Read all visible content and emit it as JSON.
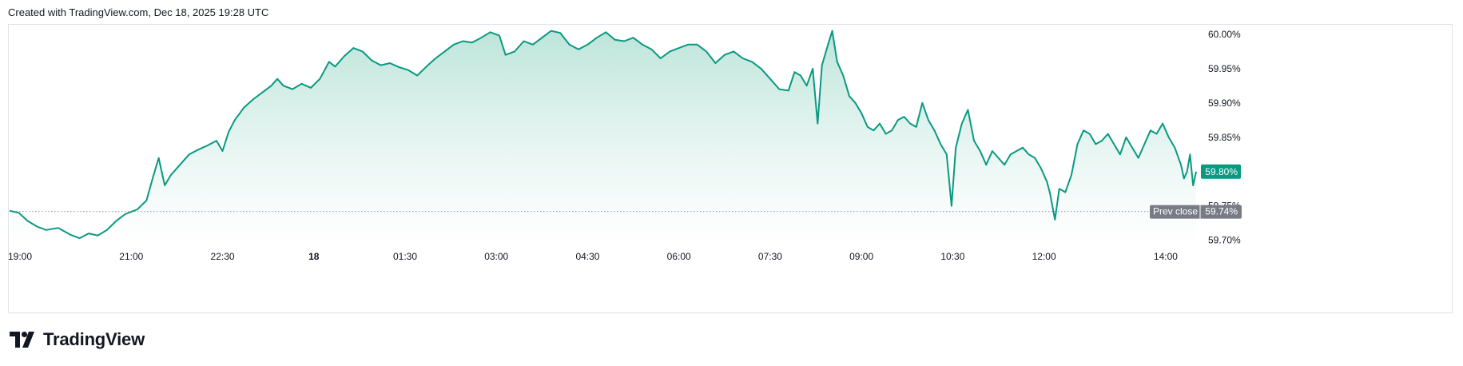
{
  "header": {
    "caption": "Created with TradingView.com, Dec 18, 2025 19:28 UTC"
  },
  "footer": {
    "brand": "TradingView",
    "logo_icon": "tradingview-logo-icon"
  },
  "colors": {
    "line": "#089981",
    "fill_top": "#b9e3d8",
    "fill_bottom": "#ffffff",
    "badge_bg": "#089981",
    "prev_close_bg": "#787b86",
    "prev_close_line": "#9598a1",
    "border": "#e0e3eb"
  },
  "chart_data": {
    "type": "area",
    "title": "",
    "xlabel": "",
    "ylabel": "",
    "x_ticks": [
      {
        "label": "19:00",
        "hours": 0,
        "bold": false
      },
      {
        "label": "21:00",
        "hours": 2,
        "bold": false
      },
      {
        "label": "22:30",
        "hours": 3.5,
        "bold": false
      },
      {
        "label": "18",
        "hours": 5,
        "bold": true
      },
      {
        "label": "01:30",
        "hours": 6.5,
        "bold": false
      },
      {
        "label": "03:00",
        "hours": 8,
        "bold": false
      },
      {
        "label": "04:30",
        "hours": 9.5,
        "bold": false
      },
      {
        "label": "06:00",
        "hours": 11,
        "bold": false
      },
      {
        "label": "07:30",
        "hours": 12.5,
        "bold": false
      },
      {
        "label": "09:00",
        "hours": 14,
        "bold": false
      },
      {
        "label": "10:30",
        "hours": 15.5,
        "bold": false
      },
      {
        "label": "12:00",
        "hours": 17,
        "bold": false
      },
      {
        "label": "14:00",
        "hours": 19,
        "bold": false
      }
    ],
    "y_ticks": [
      {
        "label": "60.00%",
        "value": 60.0
      },
      {
        "label": "59.95%",
        "value": 59.95
      },
      {
        "label": "59.90%",
        "value": 59.9
      },
      {
        "label": "59.85%",
        "value": 59.85
      },
      {
        "label": "59.75%",
        "value": 59.75
      },
      {
        "label": "59.70%",
        "value": 59.7
      }
    ],
    "xlim_hours": [
      0,
      19.5
    ],
    "ylim": [
      59.695,
      60.015
    ],
    "grid": false,
    "last_value": {
      "label": "59.80%",
      "value": 59.8
    },
    "prev_close": {
      "name": "Prev close",
      "label": "59.74%",
      "value": 59.742
    },
    "series": [
      {
        "unit": "%",
        "points": [
          [
            0.0,
            59.743
          ],
          [
            0.15,
            59.74
          ],
          [
            0.3,
            59.728
          ],
          [
            0.45,
            59.72
          ],
          [
            0.6,
            59.715
          ],
          [
            0.8,
            59.718
          ],
          [
            1.0,
            59.708
          ],
          [
            1.15,
            59.703
          ],
          [
            1.3,
            59.71
          ],
          [
            1.45,
            59.707
          ],
          [
            1.6,
            59.715
          ],
          [
            1.75,
            59.728
          ],
          [
            1.9,
            59.738
          ],
          [
            2.1,
            59.745
          ],
          [
            2.25,
            59.758
          ],
          [
            2.35,
            59.79
          ],
          [
            2.45,
            59.82
          ],
          [
            2.55,
            59.78
          ],
          [
            2.65,
            59.795
          ],
          [
            2.8,
            59.81
          ],
          [
            2.95,
            59.825
          ],
          [
            3.1,
            59.832
          ],
          [
            3.25,
            59.838
          ],
          [
            3.4,
            59.845
          ],
          [
            3.5,
            59.83
          ],
          [
            3.6,
            59.858
          ],
          [
            3.7,
            59.875
          ],
          [
            3.85,
            59.893
          ],
          [
            4.0,
            59.905
          ],
          [
            4.15,
            59.915
          ],
          [
            4.3,
            59.925
          ],
          [
            4.4,
            59.935
          ],
          [
            4.5,
            59.925
          ],
          [
            4.65,
            59.92
          ],
          [
            4.8,
            59.928
          ],
          [
            4.95,
            59.922
          ],
          [
            5.1,
            59.935
          ],
          [
            5.25,
            59.96
          ],
          [
            5.35,
            59.953
          ],
          [
            5.5,
            59.968
          ],
          [
            5.65,
            59.98
          ],
          [
            5.8,
            59.975
          ],
          [
            5.95,
            59.962
          ],
          [
            6.1,
            59.955
          ],
          [
            6.25,
            59.958
          ],
          [
            6.4,
            59.952
          ],
          [
            6.55,
            59.948
          ],
          [
            6.7,
            59.94
          ],
          [
            6.85,
            59.953
          ],
          [
            7.0,
            59.965
          ],
          [
            7.15,
            59.975
          ],
          [
            7.3,
            59.985
          ],
          [
            7.45,
            59.99
          ],
          [
            7.6,
            59.988
          ],
          [
            7.75,
            59.995
          ],
          [
            7.9,
            60.003
          ],
          [
            8.05,
            59.998
          ],
          [
            8.15,
            59.97
          ],
          [
            8.3,
            59.975
          ],
          [
            8.45,
            59.99
          ],
          [
            8.6,
            59.985
          ],
          [
            8.75,
            59.995
          ],
          [
            8.9,
            60.005
          ],
          [
            9.05,
            60.002
          ],
          [
            9.2,
            59.985
          ],
          [
            9.35,
            59.978
          ],
          [
            9.5,
            59.985
          ],
          [
            9.65,
            59.995
          ],
          [
            9.8,
            60.003
          ],
          [
            9.95,
            59.992
          ],
          [
            10.1,
            59.99
          ],
          [
            10.25,
            59.995
          ],
          [
            10.4,
            59.985
          ],
          [
            10.55,
            59.978
          ],
          [
            10.7,
            59.965
          ],
          [
            10.85,
            59.975
          ],
          [
            11.0,
            59.98
          ],
          [
            11.15,
            59.985
          ],
          [
            11.3,
            59.985
          ],
          [
            11.45,
            59.975
          ],
          [
            11.6,
            59.958
          ],
          [
            11.75,
            59.97
          ],
          [
            11.9,
            59.975
          ],
          [
            12.05,
            59.965
          ],
          [
            12.2,
            59.96
          ],
          [
            12.35,
            59.95
          ],
          [
            12.5,
            59.935
          ],
          [
            12.65,
            59.92
          ],
          [
            12.8,
            59.918
          ],
          [
            12.9,
            59.945
          ],
          [
            13.0,
            59.94
          ],
          [
            13.1,
            59.925
          ],
          [
            13.2,
            59.95
          ],
          [
            13.28,
            59.87
          ],
          [
            13.35,
            59.955
          ],
          [
            13.45,
            59.985
          ],
          [
            13.52,
            60.005
          ],
          [
            13.6,
            59.96
          ],
          [
            13.7,
            59.94
          ],
          [
            13.8,
            59.91
          ],
          [
            13.9,
            59.9
          ],
          [
            14.0,
            59.885
          ],
          [
            14.1,
            59.865
          ],
          [
            14.2,
            59.86
          ],
          [
            14.3,
            59.87
          ],
          [
            14.4,
            59.855
          ],
          [
            14.5,
            59.86
          ],
          [
            14.6,
            59.875
          ],
          [
            14.7,
            59.88
          ],
          [
            14.8,
            59.87
          ],
          [
            14.9,
            59.865
          ],
          [
            15.0,
            59.9
          ],
          [
            15.1,
            59.875
          ],
          [
            15.2,
            59.86
          ],
          [
            15.3,
            59.84
          ],
          [
            15.4,
            59.825
          ],
          [
            15.48,
            59.75
          ],
          [
            15.55,
            59.835
          ],
          [
            15.65,
            59.87
          ],
          [
            15.75,
            59.89
          ],
          [
            15.85,
            59.845
          ],
          [
            15.95,
            59.83
          ],
          [
            16.05,
            59.81
          ],
          [
            16.15,
            59.83
          ],
          [
            16.25,
            59.82
          ],
          [
            16.35,
            59.81
          ],
          [
            16.45,
            59.825
          ],
          [
            16.55,
            59.83
          ],
          [
            16.65,
            59.835
          ],
          [
            16.75,
            59.825
          ],
          [
            16.85,
            59.82
          ],
          [
            16.95,
            59.805
          ],
          [
            17.05,
            59.785
          ],
          [
            17.1,
            59.768
          ],
          [
            17.18,
            59.73
          ],
          [
            17.25,
            59.775
          ],
          [
            17.35,
            59.77
          ],
          [
            17.45,
            59.795
          ],
          [
            17.55,
            59.84
          ],
          [
            17.65,
            59.86
          ],
          [
            17.75,
            59.855
          ],
          [
            17.85,
            59.84
          ],
          [
            17.95,
            59.845
          ],
          [
            18.05,
            59.855
          ],
          [
            18.15,
            59.84
          ],
          [
            18.25,
            59.825
          ],
          [
            18.35,
            59.85
          ],
          [
            18.45,
            59.835
          ],
          [
            18.55,
            59.82
          ],
          [
            18.65,
            59.84
          ],
          [
            18.75,
            59.86
          ],
          [
            18.85,
            59.855
          ],
          [
            18.95,
            59.87
          ],
          [
            19.05,
            59.85
          ],
          [
            19.15,
            59.835
          ],
          [
            19.25,
            59.81
          ],
          [
            19.3,
            59.79
          ],
          [
            19.35,
            59.8
          ],
          [
            19.4,
            59.825
          ],
          [
            19.45,
            59.78
          ],
          [
            19.5,
            59.8
          ]
        ]
      }
    ]
  }
}
